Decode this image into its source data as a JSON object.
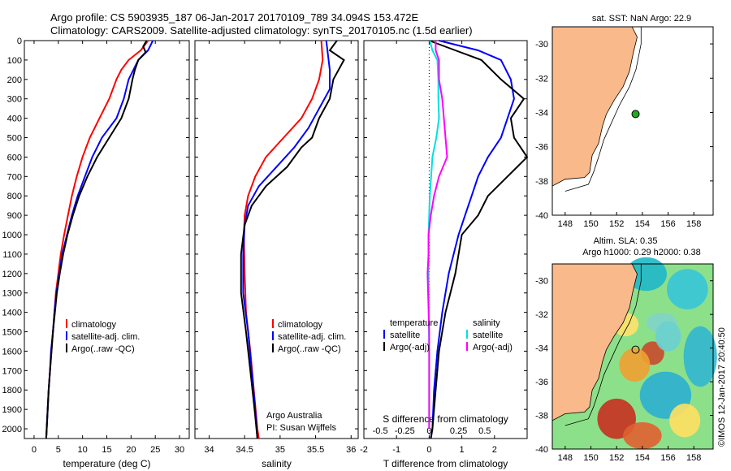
{
  "header": {
    "line1": "Argo profile: CS 5903935_187 06-Jan-2017 20170109_789 34.094S 153.472E",
    "line2": "Climatology: CARS2009. Satellite-adjusted climatology: synTS_20170105.nc (1.5d earlier)"
  },
  "colors": {
    "climatology": "#ff0000",
    "satellite": "#0000ff",
    "argo": "#000000",
    "sal_satellite": "#00e0e0",
    "sal_argo": "#ff00ff",
    "land": "#f9b98a"
  },
  "chart_data": [
    {
      "type": "line",
      "panel": "temperature",
      "xlabel": "temperature (deg C)",
      "xticks": [
        "0",
        "5",
        "10",
        "15",
        "20",
        "25",
        "30"
      ],
      "xlim": [
        -2,
        32
      ],
      "ylim": [
        2050,
        0
      ],
      "yticks": [
        "0",
        "100",
        "200",
        "300",
        "400",
        "500",
        "600",
        "700",
        "800",
        "900",
        "1000",
        "1100",
        "1200",
        "1300",
        "1400",
        "1500",
        "1600",
        "1700",
        "1800",
        "1900",
        "2000"
      ],
      "legend": [
        "climatology",
        "satellite-adj. clim.",
        "Argo(..raw -QC)"
      ],
      "series": [
        {
          "name": "climatology",
          "color": "#ff0000",
          "points": [
            [
              23.5,
              0
            ],
            [
              22,
              50
            ],
            [
              19.5,
              100
            ],
            [
              18,
              150
            ],
            [
              17,
              200
            ],
            [
              15.5,
              300
            ],
            [
              13.5,
              400
            ],
            [
              11.5,
              500
            ],
            [
              10,
              600
            ],
            [
              8.8,
              700
            ],
            [
              7.8,
              800
            ],
            [
              7,
              900
            ],
            [
              6.2,
              1000
            ],
            [
              5.5,
              1100
            ],
            [
              5,
              1200
            ],
            [
              4.5,
              1300
            ],
            [
              4.2,
              1400
            ],
            [
              3.9,
              1500
            ],
            [
              3.6,
              1600
            ],
            [
              3.3,
              1700
            ],
            [
              3,
              1800
            ],
            [
              2.8,
              1900
            ],
            [
              2.6,
              2000
            ],
            [
              2.5,
              2050
            ]
          ]
        },
        {
          "name": "satellite-adj. clim.",
          "color": "#0000ff",
          "points": [
            [
              24.5,
              0
            ],
            [
              23.5,
              50
            ],
            [
              21.5,
              100
            ],
            [
              20.5,
              150
            ],
            [
              19.5,
              200
            ],
            [
              18.5,
              300
            ],
            [
              17,
              400
            ],
            [
              14,
              500
            ],
            [
              12,
              600
            ],
            [
              10.5,
              700
            ],
            [
              9,
              800
            ],
            [
              7.8,
              900
            ],
            [
              6.8,
              1000
            ],
            [
              5.8,
              1100
            ],
            [
              5.2,
              1200
            ],
            [
              4.6,
              1300
            ],
            [
              4.2,
              1400
            ],
            [
              3.9,
              1500
            ],
            [
              3.5,
              1600
            ],
            [
              3.3,
              1700
            ],
            [
              3,
              1800
            ],
            [
              2.8,
              1900
            ],
            [
              2.6,
              2000
            ],
            [
              2.5,
              2050
            ]
          ]
        },
        {
          "name": "Argo(..raw -QC)",
          "color": "#000000",
          "points": [
            [
              23.2,
              0
            ],
            [
              22.5,
              30
            ],
            [
              23,
              60
            ],
            [
              21.5,
              100
            ],
            [
              20.8,
              150
            ],
            [
              20.3,
              200
            ],
            [
              19.5,
              300
            ],
            [
              18,
              400
            ],
            [
              15.5,
              500
            ],
            [
              13,
              600
            ],
            [
              11,
              700
            ],
            [
              9.3,
              800
            ],
            [
              8,
              900
            ],
            [
              6.9,
              1000
            ],
            [
              6,
              1100
            ],
            [
              5.3,
              1200
            ],
            [
              4.7,
              1300
            ],
            [
              4.3,
              1400
            ],
            [
              3.9,
              1500
            ],
            [
              3.6,
              1600
            ],
            [
              3.3,
              1700
            ],
            [
              3,
              1800
            ],
            [
              2.8,
              1900
            ],
            [
              2.6,
              2000
            ],
            [
              2.5,
              2050
            ]
          ]
        }
      ]
    },
    {
      "type": "line",
      "panel": "salinity",
      "xlabel": "salinity",
      "xticks": [
        "34",
        "34.5",
        "35",
        "35.5",
        "36"
      ],
      "xlim": [
        33.8,
        36.1
      ],
      "ylim": [
        2050,
        0
      ],
      "legend": [
        "climatology",
        "satellite-adj. clim.",
        "Argo(..raw -QC)"
      ],
      "annotation": [
        "Argo Australia",
        "PI: Susan Wijffels"
      ],
      "series": [
        {
          "name": "climatology",
          "color": "#ff0000",
          "points": [
            [
              35.58,
              0
            ],
            [
              35.6,
              100
            ],
            [
              35.55,
              200
            ],
            [
              35.45,
              300
            ],
            [
              35.3,
              400
            ],
            [
              35.05,
              500
            ],
            [
              34.8,
              600
            ],
            [
              34.65,
              700
            ],
            [
              34.55,
              800
            ],
            [
              34.5,
              900
            ],
            [
              34.49,
              1000
            ],
            [
              34.5,
              1200
            ],
            [
              34.52,
              1400
            ],
            [
              34.58,
              1600
            ],
            [
              34.63,
              1800
            ],
            [
              34.68,
              2000
            ],
            [
              34.7,
              2050
            ]
          ]
        },
        {
          "name": "satellite-adj. clim.",
          "color": "#0000ff",
          "points": [
            [
              35.65,
              0
            ],
            [
              35.7,
              150
            ],
            [
              35.7,
              250
            ],
            [
              35.55,
              350
            ],
            [
              35.4,
              450
            ],
            [
              35.2,
              550
            ],
            [
              34.95,
              650
            ],
            [
              34.7,
              750
            ],
            [
              34.55,
              850
            ],
            [
              34.5,
              950
            ],
            [
              34.48,
              1100
            ],
            [
              34.48,
              1300
            ],
            [
              34.55,
              1500
            ],
            [
              34.6,
              1700
            ],
            [
              34.65,
              1900
            ],
            [
              34.68,
              2050
            ]
          ]
        },
        {
          "name": "Argo(..raw -QC)",
          "color": "#000000",
          "points": [
            [
              35.8,
              0
            ],
            [
              35.7,
              50
            ],
            [
              35.9,
              100
            ],
            [
              35.75,
              200
            ],
            [
              35.7,
              300
            ],
            [
              35.55,
              400
            ],
            [
              35.45,
              500
            ],
            [
              35.3,
              550
            ],
            [
              35.1,
              650
            ],
            [
              34.8,
              750
            ],
            [
              34.6,
              850
            ],
            [
              34.5,
              950
            ],
            [
              34.45,
              1100
            ],
            [
              34.45,
              1300
            ],
            [
              34.52,
              1500
            ],
            [
              34.58,
              1700
            ],
            [
              34.64,
              1900
            ],
            [
              34.68,
              2050
            ]
          ]
        }
      ]
    },
    {
      "type": "line",
      "panel": "difference",
      "xlabel": "T difference from climatology",
      "xlabel_top": "S difference from climatology",
      "xticks": [
        "-2",
        "-1",
        "0",
        "1",
        "2"
      ],
      "xticks_top": [
        "-0.5",
        "-0.25",
        "0",
        "0.25",
        "0.5"
      ],
      "xlim": [
        -2,
        3
      ],
      "ylim": [
        2050,
        0
      ],
      "legend_left_title": "temperature",
      "legend_right_title": "salinity",
      "legend_left": [
        "satellite",
        "Argo(-adj)"
      ],
      "legend_right": [
        "satellite",
        "Argo(-adj)"
      ],
      "series": [
        {
          "name": "T satellite",
          "color": "#0000ff",
          "points": [
            [
              0.3,
              0
            ],
            [
              1.5,
              50
            ],
            [
              2.2,
              100
            ],
            [
              2.5,
              200
            ],
            [
              2.6,
              300
            ],
            [
              2.4,
              400
            ],
            [
              2.2,
              500
            ],
            [
              1.8,
              600
            ],
            [
              1.5,
              700
            ],
            [
              1.3,
              800
            ],
            [
              1.1,
              900
            ],
            [
              0.9,
              1000
            ],
            [
              0.6,
              1200
            ],
            [
              0.4,
              1400
            ],
            [
              0.25,
              1600
            ],
            [
              0.15,
              1800
            ],
            [
              0.1,
              2000
            ],
            [
              0.05,
              2050
            ]
          ]
        },
        {
          "name": "T Argo(-adj)",
          "color": "#000000",
          "points": [
            [
              0,
              0
            ],
            [
              0.8,
              50
            ],
            [
              1.6,
              100
            ],
            [
              2.2,
              200
            ],
            [
              2.9,
              300
            ],
            [
              2.5,
              400
            ],
            [
              2.6,
              500
            ],
            [
              3.0,
              600
            ],
            [
              2.4,
              700
            ],
            [
              1.8,
              800
            ],
            [
              1.5,
              900
            ],
            [
              1.0,
              1000
            ],
            [
              0.8,
              1200
            ],
            [
              0.5,
              1400
            ],
            [
              0.3,
              1600
            ],
            [
              0.2,
              1800
            ],
            [
              0.1,
              2000
            ],
            [
              0.05,
              2050
            ]
          ]
        },
        {
          "name": "S satellite",
          "color": "#00e0e0",
          "points": [
            [
              0.02,
              0
            ],
            [
              0.1,
              50
            ],
            [
              0.25,
              100
            ],
            [
              0.28,
              200
            ],
            [
              0.28,
              300
            ],
            [
              0.3,
              400
            ],
            [
              0.22,
              500
            ],
            [
              0.1,
              600
            ],
            [
              0.02,
              800
            ],
            [
              -0.02,
              1000
            ],
            [
              -0.02,
              1300
            ],
            [
              0,
              1600
            ],
            [
              0,
              2000
            ]
          ]
        },
        {
          "name": "S Argo(-adj)",
          "color": "#ff00ff",
          "points": [
            [
              0.2,
              0
            ],
            [
              0.2,
              50
            ],
            [
              0.3,
              100
            ],
            [
              0.3,
              200
            ],
            [
              0.4,
              300
            ],
            [
              0.45,
              400
            ],
            [
              0.5,
              500
            ],
            [
              0.55,
              600
            ],
            [
              0.3,
              700
            ],
            [
              0.15,
              800
            ],
            [
              0.05,
              900
            ],
            [
              -0.02,
              1000
            ],
            [
              -0.02,
              1100
            ],
            [
              -0.05,
              1200
            ],
            [
              0,
              1500
            ],
            [
              0,
              2000
            ]
          ]
        }
      ]
    }
  ],
  "map_sst": {
    "title": "sat. SST: NaN Argo: 22.9",
    "xticks": [
      "148",
      "150",
      "152",
      "154",
      "156",
      "158"
    ],
    "yticks": [
      "-30",
      "-32",
      "-34",
      "-36",
      "-38",
      "-40"
    ]
  },
  "map_sla": {
    "title1": "Altim. SLA: 0.35",
    "title2": "Argo h1000: 0.29 h2000: 0.38",
    "xticks": [
      "148",
      "150",
      "152",
      "154",
      "156",
      "158"
    ],
    "yticks": [
      "-30",
      "-32",
      "-34",
      "-36",
      "-38",
      "-40"
    ]
  },
  "stamp": "©IMOS 12-Jan-2017 20:40:50"
}
